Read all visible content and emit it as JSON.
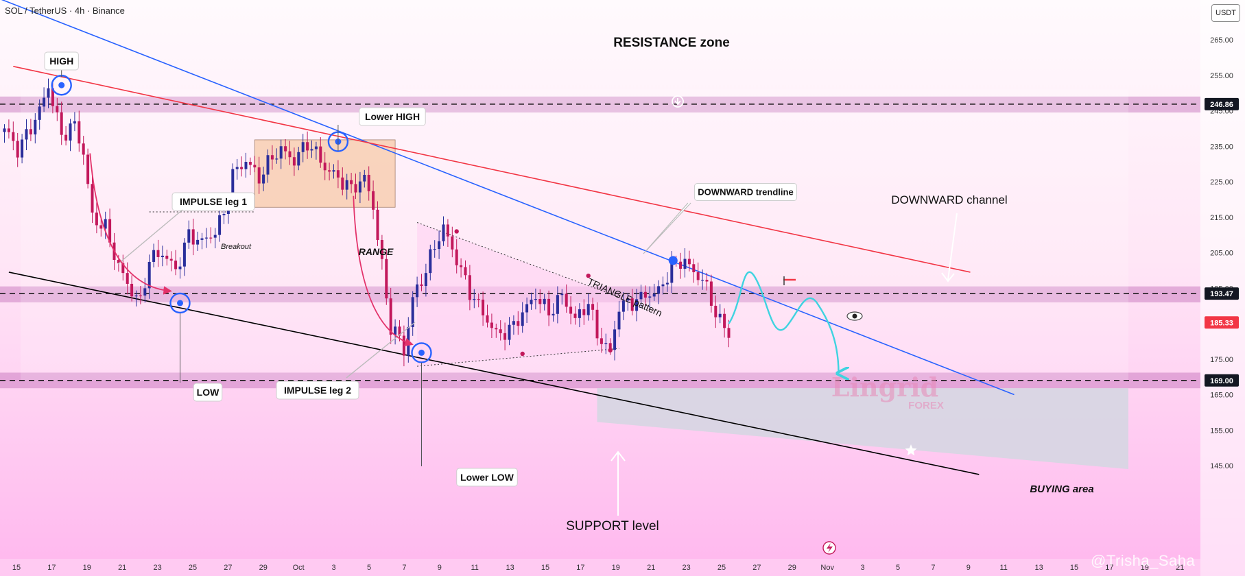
{
  "header": {
    "symbol": "SOL / TetherUS · 4h · Binance",
    "currency": "USDT"
  },
  "watermark": "@Trisha_Saha",
  "logo": {
    "text1": "Lingrid",
    "text2": "FOREX"
  },
  "colors": {
    "bg_top": "#ffffff",
    "bg_bottom": "#ffb8ee",
    "up": "#2a2e9b",
    "down": "#c2185b",
    "trend_blue": "#2962ff",
    "trend_red": "#f23645",
    "support_line": "#000000",
    "zone": "#c77dc2",
    "range_box": "#f7c9a8",
    "projection": "#3fd3e0"
  },
  "annotations": {
    "resistance_zone": "RESISTANCE zone",
    "high": "HIGH",
    "lower_high": "Lower HIGH",
    "low": "LOW",
    "lower_low": "Lower LOW",
    "impulse1": "IMPULSE leg 1",
    "impulse2": "IMPULSE leg 2",
    "breakout": "Breakout",
    "range": "RANGE",
    "triangle": "TRIANGLE pattern",
    "downward_trendline": "DOWNWARD trendline",
    "downward_channel": "DOWNWARD channel",
    "support_level": "SUPPORT level",
    "buying_area": "BUYING area"
  },
  "chart_data": {
    "type": "candlestick",
    "symbol": "SOL / TetherUS",
    "timeframe": "4h",
    "exchange": "Binance",
    "y_axis": {
      "ticks": [
        145,
        155,
        165,
        175,
        185,
        195,
        205,
        215,
        225,
        235,
        245,
        255,
        265
      ],
      "tick_labels": [
        "145.00",
        "155.00",
        "165.00",
        "175.00",
        "185.00",
        "195.00",
        "205.00",
        "215.00",
        "225.00",
        "235.00",
        "245.00",
        "255.00",
        "265.00"
      ],
      "range": [
        141,
        279
      ]
    },
    "x_axis": {
      "ticks": [
        "15",
        "17",
        "19",
        "21",
        "23",
        "25",
        "27",
        "29",
        "Oct",
        "3",
        "5",
        "7",
        "9",
        "11",
        "13",
        "15",
        "17",
        "19",
        "21",
        "23",
        "25",
        "27",
        "29",
        "Nov",
        "3",
        "5",
        "7",
        "9",
        "11",
        "13",
        "15",
        "17",
        "19",
        "21"
      ]
    },
    "price_labels": [
      {
        "value": "246.86",
        "level": 246.86
      },
      {
        "value": "193.47",
        "level": 193.47
      },
      {
        "value": "185.33",
        "level": 185.33,
        "current": true
      },
      {
        "value": "169.00",
        "level": 169.0
      }
    ],
    "zones": [
      {
        "name": "resistance",
        "from": 244.5,
        "to": 249.0
      },
      {
        "name": "mid",
        "from": 191.0,
        "to": 195.5
      },
      {
        "name": "support",
        "from": 166.8,
        "to": 171.2
      }
    ],
    "path_points": [
      [
        0,
        240
      ],
      [
        3,
        234
      ],
      [
        5,
        238
      ],
      [
        8,
        245
      ],
      [
        10,
        252
      ],
      [
        13,
        238
      ],
      [
        16,
        241
      ],
      [
        18,
        233
      ],
      [
        20,
        215
      ],
      [
        23,
        212
      ],
      [
        26,
        201
      ],
      [
        29,
        194
      ],
      [
        31,
        191
      ],
      [
        33,
        203
      ],
      [
        36,
        205
      ],
      [
        39,
        200
      ],
      [
        42,
        210
      ],
      [
        45,
        208
      ],
      [
        48,
        211
      ],
      [
        50,
        216
      ],
      [
        52,
        227
      ],
      [
        55,
        231
      ],
      [
        58,
        226
      ],
      [
        61,
        232
      ],
      [
        63,
        234
      ],
      [
        66,
        231
      ],
      [
        69,
        236
      ],
      [
        71,
        233
      ],
      [
        73,
        229
      ],
      [
        76,
        226
      ],
      [
        79,
        223
      ],
      [
        82,
        226
      ],
      [
        84,
        218
      ],
      [
        86,
        201
      ],
      [
        88,
        184
      ],
      [
        90,
        181
      ],
      [
        91,
        177
      ],
      [
        93,
        192
      ],
      [
        96,
        200
      ],
      [
        98,
        207
      ],
      [
        100,
        212
      ],
      [
        103,
        203
      ],
      [
        106,
        194
      ],
      [
        109,
        188
      ],
      [
        112,
        182
      ],
      [
        115,
        183
      ],
      [
        118,
        188
      ],
      [
        121,
        193
      ],
      [
        124,
        188
      ],
      [
        127,
        193
      ],
      [
        130,
        186
      ],
      [
        133,
        191
      ],
      [
        135,
        182
      ],
      [
        138,
        177
      ],
      [
        140,
        190
      ],
      [
        143,
        191
      ],
      [
        146,
        193
      ],
      [
        149,
        194
      ],
      [
        152,
        201
      ],
      [
        155,
        203
      ],
      [
        157,
        199
      ],
      [
        159,
        198
      ],
      [
        161,
        191
      ],
      [
        163,
        186
      ],
      [
        165,
        181
      ]
    ],
    "projection": [
      185,
      198,
      184,
      191,
      169
    ],
    "trendlines": [
      {
        "name": "downward-trendline-blue",
        "from": [
          -1,
          276.5
        ],
        "to": [
          230,
          165.0
        ]
      },
      {
        "name": "channel-top-red",
        "from": [
          2,
          257.5
        ],
        "to": [
          220,
          199.5
        ]
      },
      {
        "name": "channel-bottom-black",
        "from": [
          1,
          199.5
        ],
        "to": [
          222,
          142.5
        ]
      }
    ]
  }
}
